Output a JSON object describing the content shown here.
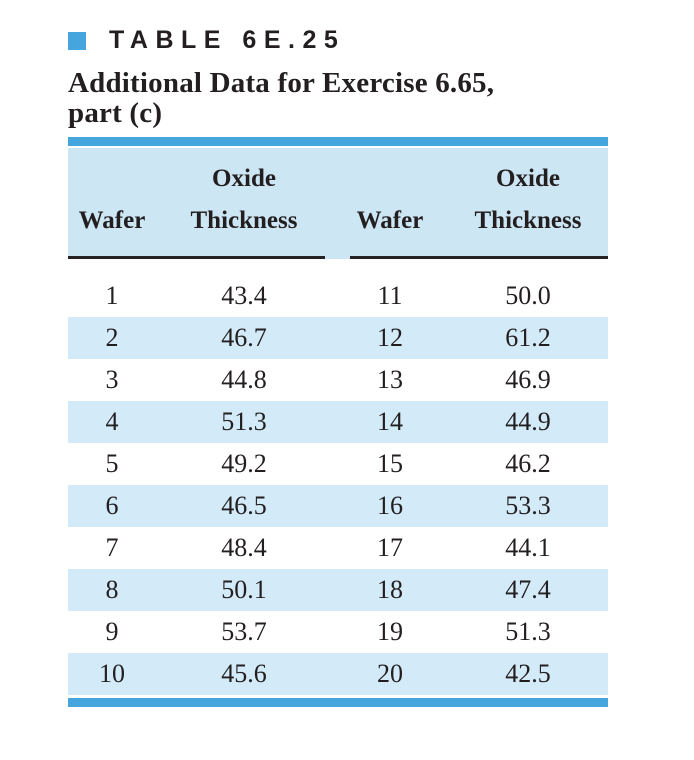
{
  "title": {
    "table_label": "TABLE 6E.25",
    "subtitle_line1": "Additional Data for Exercise 6.65,",
    "subtitle_line2": "part (c)"
  },
  "table": {
    "columns": [
      {
        "top": "",
        "bottom": "Wafer"
      },
      {
        "top": "Oxide",
        "bottom": "Thickness"
      },
      {
        "top": "",
        "bottom": "Wafer"
      },
      {
        "top": "Oxide",
        "bottom": "Thickness"
      }
    ],
    "rows": [
      {
        "wafer_left": "1",
        "thickness_left": "43.4",
        "wafer_right": "11",
        "thickness_right": "50.0"
      },
      {
        "wafer_left": "2",
        "thickness_left": "46.7",
        "wafer_right": "12",
        "thickness_right": "61.2"
      },
      {
        "wafer_left": "3",
        "thickness_left": "44.8",
        "wafer_right": "13",
        "thickness_right": "46.9"
      },
      {
        "wafer_left": "4",
        "thickness_left": "51.3",
        "wafer_right": "14",
        "thickness_right": "44.9"
      },
      {
        "wafer_left": "5",
        "thickness_left": "49.2",
        "wafer_right": "15",
        "thickness_right": "46.2"
      },
      {
        "wafer_left": "6",
        "thickness_left": "46.5",
        "wafer_right": "16",
        "thickness_right": "53.3"
      },
      {
        "wafer_left": "7",
        "thickness_left": "48.4",
        "wafer_right": "17",
        "thickness_right": "44.1"
      },
      {
        "wafer_left": "8",
        "thickness_left": "50.1",
        "wafer_right": "18",
        "thickness_right": "47.4"
      },
      {
        "wafer_left": "9",
        "thickness_left": "53.7",
        "wafer_right": "19",
        "thickness_right": "51.3"
      },
      {
        "wafer_left": "10",
        "thickness_left": "45.6",
        "wafer_right": "20",
        "thickness_right": "42.5"
      }
    ]
  },
  "colors": {
    "accent": "#45a6dd",
    "header_bg": "#cde6f4",
    "stripe_bg": "#d3eaf8",
    "rule": "#262223",
    "text": "#231f20"
  }
}
